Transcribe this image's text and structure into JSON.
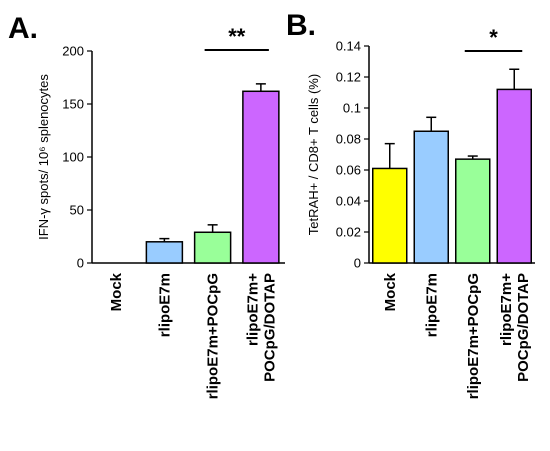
{
  "chart_data": [
    {
      "type": "bar",
      "panel": "A.",
      "ylabel": "IFN-γ spots/ 10⁶ splenocytes",
      "ylim": [
        0,
        200
      ],
      "yticks": [
        "0",
        "50",
        "100",
        "150",
        "200"
      ],
      "categories": [
        "Mock",
        "rlipoE7m",
        "rlipoE7m+POCpG",
        "rlipoE7m+\nPOCpG/DOTAP"
      ],
      "values": [
        0,
        20,
        29,
        162
      ],
      "errors": [
        0,
        3,
        7,
        7
      ],
      "colors": [
        "#ffff00",
        "#99ccff",
        "#99ff99",
        "#cc66ff"
      ],
      "significance": {
        "label": "**",
        "from": 2,
        "to": 3
      }
    },
    {
      "type": "bar",
      "panel": "B.",
      "ylabel": "TetRAH+ / CD8+ T cells (%)",
      "ylim": [
        0,
        0.14
      ],
      "yticks": [
        "0",
        "0.02",
        "0.04",
        "0.06",
        "0.08",
        "0.1",
        "0.12",
        "0.14"
      ],
      "categories": [
        "Mock",
        "rlipoE7m",
        "rlipoE7m+POCpG",
        "rlipoE7m+\nPOCpG/DOTAP"
      ],
      "values": [
        0.061,
        0.085,
        0.067,
        0.112
      ],
      "errors": [
        0.016,
        0.009,
        0.002,
        0.013
      ],
      "colors": [
        "#ffff00",
        "#99ccff",
        "#99ff99",
        "#cc66ff"
      ],
      "significance": {
        "label": "*",
        "from": 2,
        "to": 3
      }
    }
  ]
}
